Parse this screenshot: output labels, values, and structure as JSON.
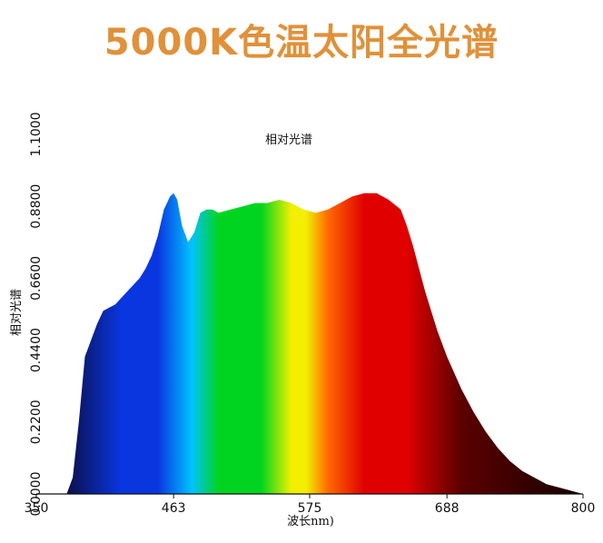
{
  "banner": {
    "title": "5000K色温太阳全光谱",
    "color": "#e0913a"
  },
  "chart_data": {
    "type": "area",
    "title": "相对光谱",
    "xlabel": "波长nm)",
    "ylabel": "相对光谱",
    "xlim": [
      350,
      800
    ],
    "ylim": [
      0,
      1.1
    ],
    "x_ticks": [
      {
        "value": 350,
        "label": "350"
      },
      {
        "value": 463,
        "label": "463"
      },
      {
        "value": 575,
        "label": "575"
      },
      {
        "value": 688,
        "label": "688"
      },
      {
        "value": 800,
        "label": "800"
      }
    ],
    "y_ticks": [
      {
        "value": 0.0,
        "label": "0.0000"
      },
      {
        "value": 0.22,
        "label": "0.2200"
      },
      {
        "value": 0.44,
        "label": "0.4400"
      },
      {
        "value": 0.66,
        "label": "0.6600"
      },
      {
        "value": 0.88,
        "label": "0.8800"
      },
      {
        "value": 1.1,
        "label": "1.1000"
      }
    ],
    "series": [
      {
        "x": [
          375,
          380,
          385,
          390,
          395,
          400,
          405,
          410,
          415,
          420,
          425,
          430,
          435,
          440,
          445,
          450,
          455,
          460,
          463,
          466,
          470,
          475,
          480,
          485,
          490,
          495,
          500,
          510,
          520,
          530,
          540,
          550,
          560,
          570,
          580,
          590,
          600,
          610,
          620,
          630,
          640,
          650,
          655,
          660,
          665,
          670,
          675,
          680,
          688,
          700,
          710,
          720,
          730,
          740,
          750,
          760,
          770,
          780,
          790,
          800
        ],
        "y": [
          0.0,
          0.05,
          0.22,
          0.42,
          0.47,
          0.52,
          0.56,
          0.57,
          0.58,
          0.6,
          0.62,
          0.64,
          0.66,
          0.69,
          0.73,
          0.79,
          0.87,
          0.91,
          0.92,
          0.9,
          0.82,
          0.77,
          0.8,
          0.86,
          0.87,
          0.87,
          0.86,
          0.87,
          0.88,
          0.89,
          0.89,
          0.9,
          0.89,
          0.87,
          0.86,
          0.87,
          0.89,
          0.91,
          0.92,
          0.92,
          0.9,
          0.87,
          0.82,
          0.76,
          0.69,
          0.62,
          0.56,
          0.5,
          0.42,
          0.32,
          0.25,
          0.19,
          0.14,
          0.1,
          0.07,
          0.05,
          0.03,
          0.02,
          0.01,
          0.0
        ]
      }
    ],
    "grid": false,
    "legend": "none",
    "colors": {
      "violet": "#0b0f4a",
      "blue": "#0a36e0",
      "cyan": "#00c2ff",
      "green": "#00d420",
      "yellow": "#f2f000",
      "orange": "#ff6a00",
      "red": "#e00000",
      "dark_red": "#5c0000",
      "black": "#140000"
    }
  }
}
